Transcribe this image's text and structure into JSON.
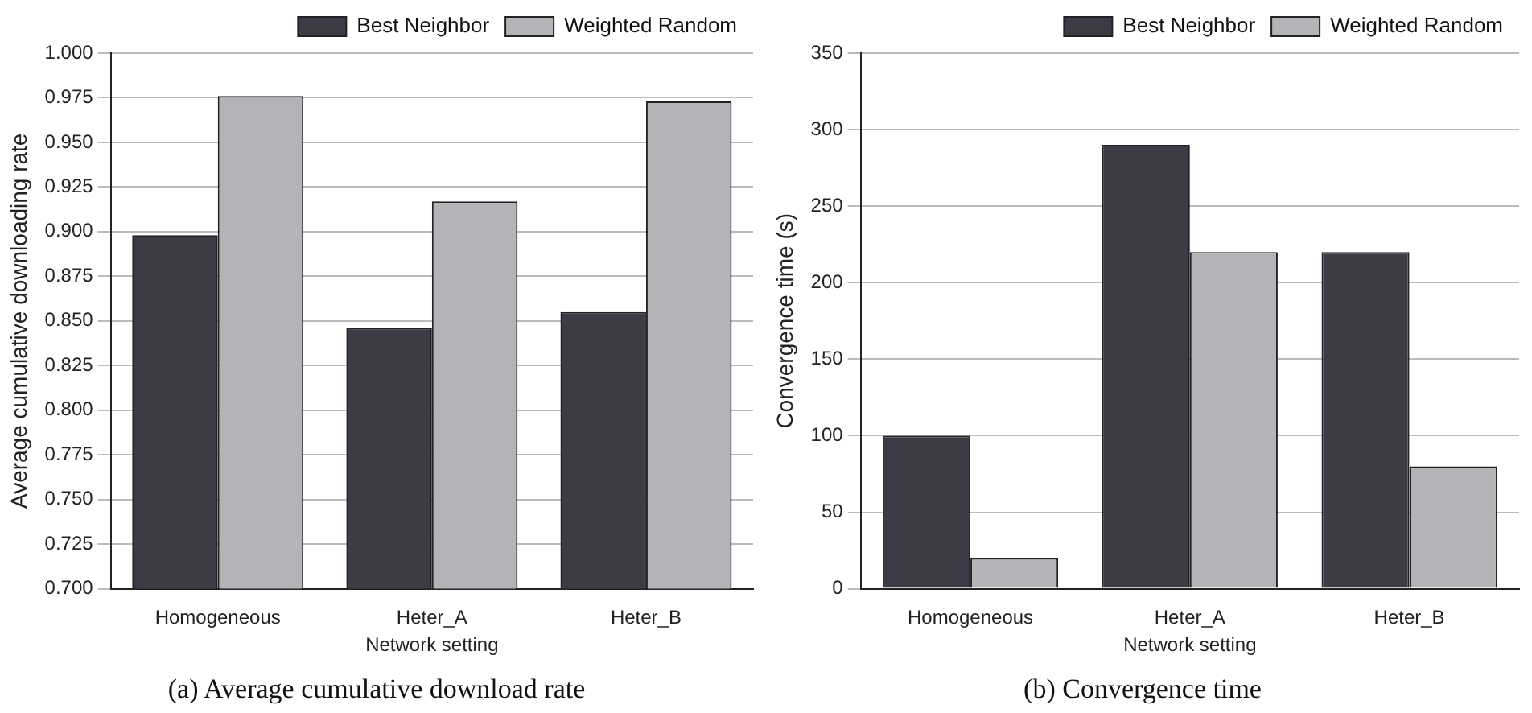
{
  "chart_data": [
    {
      "type": "bar",
      "title": "(a) Average cumulative download rate",
      "xlabel": "Network setting",
      "ylabel": "Average cumulative downloading rate",
      "categories": [
        "Homogeneous",
        "Heter_A",
        "Heter_B"
      ],
      "series": [
        {
          "name": "Best Neighbor",
          "color": "#3c3c46",
          "values": [
            0.898,
            0.846,
            0.855
          ]
        },
        {
          "name": "Weighted Random",
          "color": "#b4b4b8",
          "values": [
            0.976,
            0.917,
            0.973
          ]
        }
      ],
      "ylim": [
        0.7,
        1.0
      ],
      "yticks": [
        {
          "value": 0.7,
          "label": "0.700"
        },
        {
          "value": 0.725,
          "label": "0.725"
        },
        {
          "value": 0.75,
          "label": "0.750"
        },
        {
          "value": 0.775,
          "label": "0.775"
        },
        {
          "value": 0.8,
          "label": "0.800"
        },
        {
          "value": 0.825,
          "label": "0.825"
        },
        {
          "value": 0.85,
          "label": "0.850"
        },
        {
          "value": 0.875,
          "label": "0.875"
        },
        {
          "value": 0.9,
          "label": "0.900"
        },
        {
          "value": 0.925,
          "label": "0.925"
        },
        {
          "value": 0.95,
          "label": "0.950"
        },
        {
          "value": 0.975,
          "label": "0.975"
        },
        {
          "value": 1.0,
          "label": "1.000"
        }
      ],
      "grid": "y",
      "legend": "top right"
    },
    {
      "type": "bar",
      "title": "(b) Convergence time",
      "xlabel": "Network setting",
      "ylabel": "Convergence time (s)",
      "categories": [
        "Homogeneous",
        "Heter_A",
        "Heter_B"
      ],
      "series": [
        {
          "name": "Best Neighbor",
          "color": "#3c3c46",
          "values": [
            100,
            290,
            220
          ]
        },
        {
          "name": "Weighted Random",
          "color": "#b4b4b8",
          "values": [
            20,
            220,
            80
          ]
        }
      ],
      "ylim": [
        0,
        350
      ],
      "yticks": [
        0,
        50,
        100,
        150,
        200,
        250,
        300,
        350
      ],
      "grid": "y",
      "legend": "top right"
    }
  ]
}
